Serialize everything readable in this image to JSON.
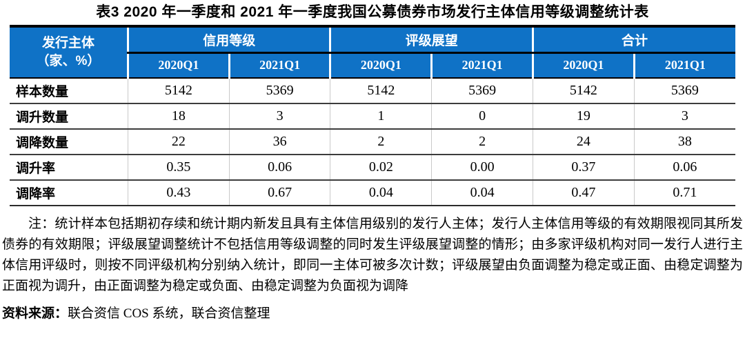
{
  "title": "表3  2020 年一季度和 2021 年一季度我国公募债券市场发行主体信用等级调整统计表",
  "table": {
    "corner": {
      "line1": "发行主体",
      "line2": "（家、%）"
    },
    "groups": [
      {
        "label": "信用等级"
      },
      {
        "label": "评级展望"
      },
      {
        "label": "合计"
      }
    ],
    "periods": [
      "2020Q1",
      "2021Q1",
      "2020Q1",
      "2021Q1",
      "2020Q1",
      "2021Q1"
    ],
    "rows": [
      {
        "label": "样本数量",
        "values": [
          "5142",
          "5369",
          "5142",
          "5369",
          "5142",
          "5369"
        ]
      },
      {
        "label": "调升数量",
        "values": [
          "18",
          "3",
          "1",
          "0",
          "19",
          "3"
        ]
      },
      {
        "label": "调降数量",
        "values": [
          "22",
          "36",
          "2",
          "2",
          "24",
          "38"
        ]
      },
      {
        "label": "调升率",
        "values": [
          "0.35",
          "0.06",
          "0.02",
          "0.00",
          "0.37",
          "0.06"
        ]
      },
      {
        "label": "调降率",
        "values": [
          "0.43",
          "0.67",
          "0.04",
          "0.04",
          "0.47",
          "0.71"
        ]
      }
    ]
  },
  "note": "注：统计样本包括期初存续和统计期内新发且具有主体信用级别的发行人主体；发行人主体信用等级的有效期限视同其所发债券的有效期限；评级展望调整统计不包括信用等级调整的同时发生评级展望调整的情形；由多家评级机构对同一发行人进行主体信用评级时，则按不同评级机构分别纳入统计，即同一主体可被多次计数；评级展望由负面调整为稳定或正面、由稳定调整为正面视为调升，由正面调整为稳定或负面、由稳定调整为负面视为调降",
  "source": {
    "label": "资料来源：",
    "text": "联合资信 COS 系统，联合资信整理"
  },
  "colors": {
    "header_blue": "#0F72C6",
    "grid_dark": "#3c3c3c",
    "grid_light": "#c9c9c9"
  }
}
